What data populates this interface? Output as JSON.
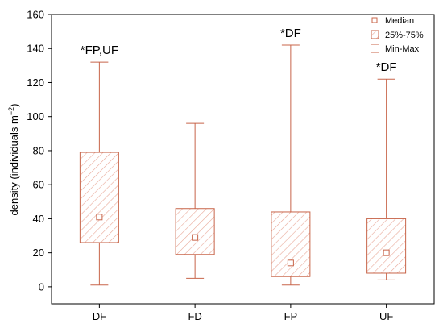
{
  "chart_data": {
    "type": "boxplot",
    "categories": [
      "DF",
      "FD",
      "FP",
      "UF"
    ],
    "boxes": [
      {
        "min": 1,
        "q1": 26,
        "median": 41,
        "q3": 79,
        "max": 132,
        "annotation": "*FP,UF"
      },
      {
        "min": 5,
        "q1": 19,
        "median": 29,
        "q3": 46,
        "max": 96,
        "annotation": ""
      },
      {
        "min": 1,
        "q1": 6,
        "median": 14,
        "q3": 44,
        "max": 142,
        "annotation": "*DF"
      },
      {
        "min": 4,
        "q1": 8,
        "median": 20,
        "q3": 40,
        "max": 122,
        "annotation": "*DF"
      }
    ],
    "ylabel_main": "density (individuals m",
    "ylabel_sup": "−2",
    "ylabel_close": ")",
    "ylim": [
      -10,
      160
    ],
    "yticks": [
      0,
      20,
      40,
      60,
      80,
      100,
      120,
      140,
      160
    ],
    "legend": {
      "placement": "top-right",
      "entries": [
        "Median",
        "25%-75%",
        "Min-Max"
      ]
    },
    "colors": {
      "stroke": "#c8654a",
      "hatch": "#e8a898",
      "axis": "#000000"
    }
  }
}
